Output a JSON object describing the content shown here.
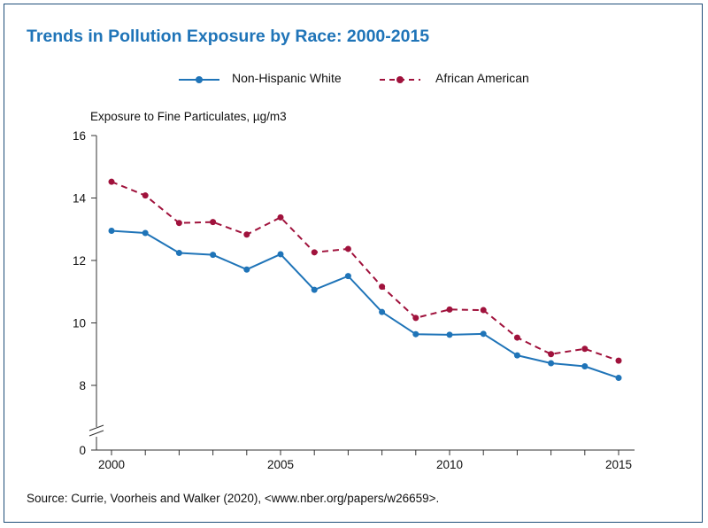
{
  "title": "Trends in Pollution Exposure by Race: 2000-2015",
  "source": "Source: Currie, Voorheis and Walker (2020), <www.nber.org/papers/w26659>.",
  "colors": {
    "title": "#1f74b8",
    "white_series": "#1f74b8",
    "aa_series": "#a0123c",
    "frame": "#1f4e79"
  },
  "chart_data": {
    "type": "line",
    "title": "Trends in Pollution Exposure by Race: 2000-2015",
    "ylabel": "Exposure to Fine Particulates, µg/m3",
    "xlabel": "",
    "x": [
      2000,
      2001,
      2002,
      2003,
      2004,
      2005,
      2006,
      2007,
      2008,
      2009,
      2010,
      2011,
      2012,
      2013,
      2014,
      2015
    ],
    "x_ticks": [
      2000,
      2005,
      2010,
      2015
    ],
    "y_ticks": [
      0,
      8,
      10,
      12,
      14,
      16
    ],
    "ylim": [
      0,
      16
    ],
    "axis_break": true,
    "legend_position": "top-center",
    "series": [
      {
        "name": "Non-Hispanic White",
        "style": "solid",
        "values": [
          12.95,
          12.88,
          12.24,
          12.18,
          11.71,
          12.2,
          11.06,
          11.5,
          10.35,
          9.64,
          9.62,
          9.65,
          8.96,
          8.71,
          8.61,
          8.24
        ]
      },
      {
        "name": "African American",
        "style": "dashed",
        "values": [
          14.52,
          14.08,
          13.2,
          13.23,
          12.83,
          13.38,
          12.26,
          12.37,
          11.16,
          10.16,
          10.43,
          10.41,
          9.53,
          9.0,
          9.17,
          8.79
        ]
      }
    ]
  }
}
